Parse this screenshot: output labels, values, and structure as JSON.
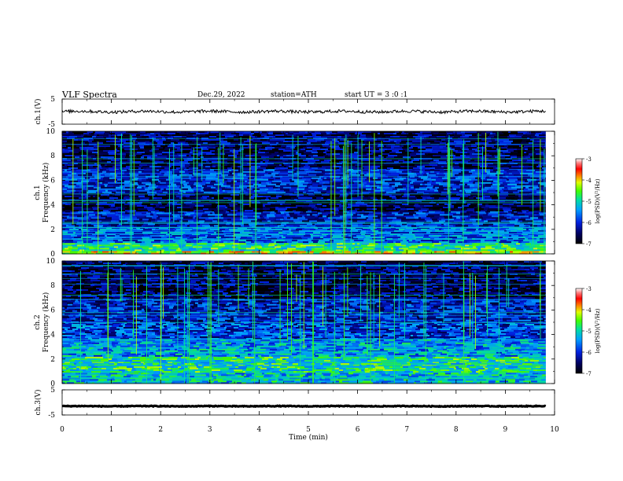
{
  "header": {
    "title": "VLF  Spectra",
    "date": "Dec.29, 2022",
    "station": "station=ATH",
    "start": "start  UT  =    3  :0  :1"
  },
  "colors": {
    "spectrogram_base": "#0a2ad0",
    "trace": "#000000"
  },
  "chart_data": [
    {
      "id": "ch1-voltage",
      "type": "line",
      "ylabel": "ch.1(V)",
      "ylim": [
        -5,
        5
      ],
      "ytick_labels": [
        "5",
        "-5"
      ],
      "baseline": 0,
      "amplitude": 0.6
    },
    {
      "id": "ch1-spectrogram",
      "type": "heatmap",
      "ylabel": "ch.1\nFrequency (kHz)",
      "ylim": [
        0,
        10
      ],
      "ytick_labels": [
        "0",
        "2",
        "4",
        "6",
        "8",
        "10"
      ],
      "colorbar": {
        "label": "log(PSD)(V²/Hz)",
        "range": [
          -7,
          -3
        ],
        "tick_labels": [
          "-3",
          "-4",
          "-5",
          "-6",
          "-7"
        ]
      },
      "bands_khz": [
        {
          "f0": 0.0,
          "f1": 0.35,
          "level": -4.3
        },
        {
          "f0": 0.35,
          "f1": 1.0,
          "level": -4.8
        },
        {
          "f0": 1.0,
          "f1": 2.3,
          "level": -5.7
        },
        {
          "f0": 2.3,
          "f1": 3.5,
          "level": -6.1
        },
        {
          "f0": 3.5,
          "f1": 5.0,
          "level": -6.6
        },
        {
          "f0": 5.0,
          "f1": 7.0,
          "level": -6.0
        },
        {
          "f0": 7.0,
          "f1": 10.0,
          "level": -6.5
        }
      ]
    },
    {
      "id": "ch2-spectrogram",
      "type": "heatmap",
      "ylabel": "ch.2\nFrequency (kHz)",
      "ylim": [
        0,
        10
      ],
      "ytick_labels": [
        "0",
        "2",
        "4",
        "6",
        "8",
        "10"
      ],
      "colorbar": {
        "label": "log(PSD)(V²/Hz)",
        "range": [
          -7,
          -3
        ],
        "tick_labels": [
          "-3",
          "-4",
          "-5",
          "-6",
          "-7"
        ]
      },
      "bands_khz": [
        {
          "f0": 0.0,
          "f1": 1.0,
          "level": -5.2
        },
        {
          "f0": 1.0,
          "f1": 2.3,
          "level": -4.9
        },
        {
          "f0": 2.3,
          "f1": 3.6,
          "level": -5.4
        },
        {
          "f0": 3.6,
          "f1": 5.0,
          "level": -5.9
        },
        {
          "f0": 5.0,
          "f1": 7.0,
          "level": -6.1
        },
        {
          "f0": 7.0,
          "f1": 10.0,
          "level": -6.6
        }
      ]
    },
    {
      "id": "ch3-voltage",
      "type": "line",
      "ylabel": "ch.3(V)",
      "ylim": [
        -5,
        5
      ],
      "ytick_labels": [
        "5",
        "-5"
      ],
      "baseline": -1.5,
      "amplitude": 0.15
    }
  ],
  "xaxis": {
    "label": "Time  (min)",
    "xlim": [
      0,
      10
    ],
    "data_end": 9.82,
    "tick_labels": [
      "0",
      "1",
      "2",
      "3",
      "4",
      "5",
      "6",
      "7",
      "8",
      "9",
      "10"
    ]
  }
}
